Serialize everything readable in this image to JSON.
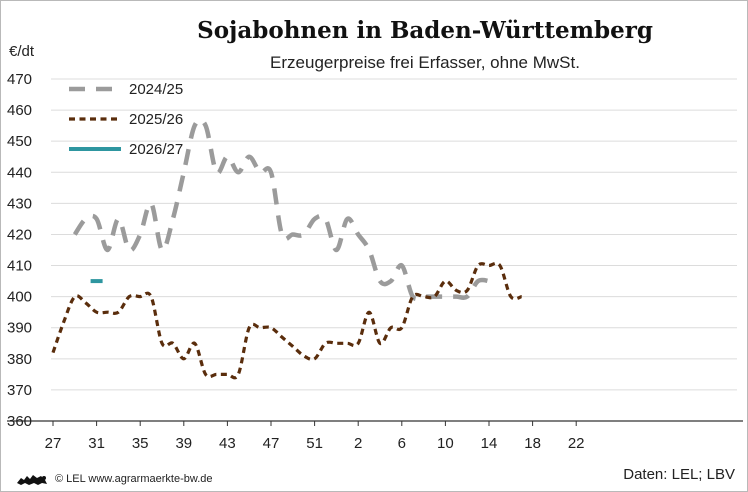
{
  "chart_data": {
    "type": "line",
    "title": "Sojabohnen in Baden-Württemberg",
    "subtitle": "Erzeugerpreise frei Erfasser, ohne MwSt.",
    "ylabel": "€/dt",
    "xlabel": "",
    "ylim": [
      360,
      470
    ],
    "yticks": [
      360,
      370,
      380,
      390,
      400,
      410,
      420,
      430,
      440,
      450,
      460,
      470
    ],
    "x_ticks": [
      "27",
      "31",
      "35",
      "39",
      "43",
      "47",
      "51",
      "2",
      "6",
      "10",
      "14",
      "18",
      "22"
    ],
    "grid": "horizontal",
    "legend_position": "top-left",
    "series": [
      {
        "name": "2024/25",
        "color": "#9b9b9b",
        "dash": "long-dash",
        "values": [
          420,
          425,
          425,
          415,
          425,
          415,
          420,
          430,
          415,
          425,
          440,
          455,
          455,
          440,
          445,
          440,
          445,
          440,
          440,
          420,
          420,
          420,
          425,
          425,
          415,
          425,
          420,
          415,
          405,
          405,
          410,
          400,
          400,
          400,
          400,
          400,
          400,
          405,
          405
        ]
      },
      {
        "name": "2025/26",
        "color": "#5a2d0c",
        "dash": "short-dash",
        "values": [
          382,
          392,
          400,
          398,
          395,
          395,
          395,
          400,
          400,
          400,
          385,
          385,
          380,
          385,
          375,
          375,
          375,
          375,
          390,
          390,
          390,
          387,
          384,
          381,
          380,
          385,
          385,
          385,
          385,
          395,
          385,
          390,
          390,
          400,
          400,
          400,
          405,
          402,
          402,
          410,
          410,
          410,
          400,
          400
        ],
        "x_start_index": -2
      },
      {
        "name": "2026/27",
        "color": "#2e96a0",
        "dash": "solid",
        "values": [
          405
        ],
        "x_start_index": 2
      }
    ]
  },
  "footer": {
    "copyright": "© LEL www.agrarmaerkte-bw.de",
    "source": "Daten: LEL; LBV"
  }
}
